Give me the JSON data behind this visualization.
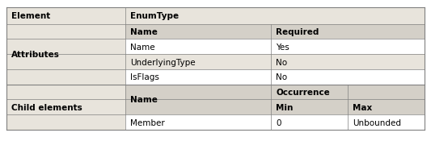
{
  "title_col1": "Element",
  "title_col2": "EnumType",
  "section1_row_label": "Attributes",
  "section1_header": [
    "Name",
    "Required"
  ],
  "section1_rows": [
    [
      "Name",
      "Yes"
    ],
    [
      "UnderlyingType",
      "No"
    ],
    [
      "IsFlags",
      "No"
    ]
  ],
  "section2_row_label": "Child elements",
  "section2_header_name": "Name",
  "section2_occurrence": "Occurrence",
  "section2_subheader": [
    "Min",
    "Max"
  ],
  "section2_rows": [
    [
      "Member",
      "0",
      "Unbounded"
    ]
  ],
  "bg_header": "#d4d0c8",
  "bg_white": "#ffffff",
  "bg_light": "#e8e4dc",
  "border_color": "#808080",
  "font_size": 7.5,
  "fig_width": 5.33,
  "fig_height": 2.07,
  "dpi": 100
}
